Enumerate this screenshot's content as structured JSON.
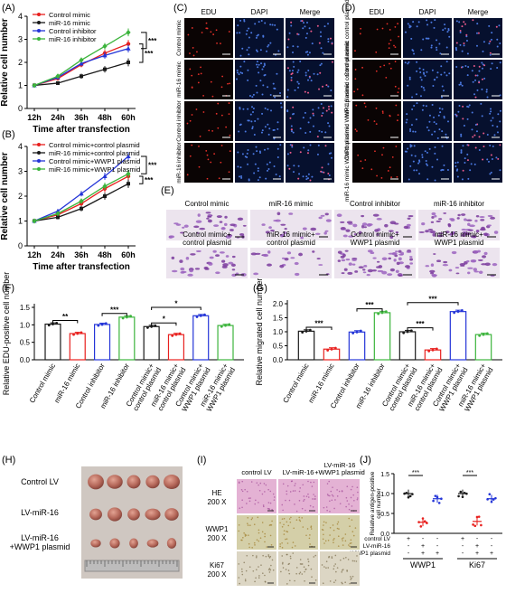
{
  "panels": {
    "A": "(A)",
    "B": "(B)",
    "C": "(C)",
    "D": "(D)",
    "E": "(E)",
    "F": "(F)",
    "G": "(G)",
    "H": "(H)",
    "I": "(I)",
    "J": "(J)"
  },
  "chart_data": [
    {
      "id": "A",
      "type": "line",
      "ylabel": "Relative cell number",
      "xlabel": "Time after transfection",
      "categories": [
        "12h",
        "24h",
        "36h",
        "48h",
        "60h"
      ],
      "yticks": [
        "0",
        "1",
        "2",
        "3",
        "4"
      ],
      "ylim": [
        0,
        4
      ],
      "significance": [
        "***",
        "***"
      ],
      "series": [
        {
          "name": "Control mimic",
          "color": "#e8201e",
          "values": [
            1.0,
            1.3,
            1.9,
            2.4,
            2.8
          ]
        },
        {
          "name": "miR-16 mimic",
          "color": "#1a1a1a",
          "values": [
            1.0,
            1.1,
            1.4,
            1.7,
            2.0
          ]
        },
        {
          "name": "Control inhibitor",
          "color": "#2435d8",
          "values": [
            1.0,
            1.35,
            1.95,
            2.3,
            2.6
          ]
        },
        {
          "name": "miR-16 inhibitor",
          "color": "#3cb43c",
          "values": [
            1.0,
            1.4,
            2.1,
            2.7,
            3.3
          ]
        }
      ]
    },
    {
      "id": "B",
      "type": "line",
      "ylabel": "Relative cell number",
      "xlabel": "Time after transfection",
      "categories": [
        "12h",
        "24h",
        "36h",
        "48h",
        "60h"
      ],
      "yticks": [
        "0",
        "1",
        "2",
        "3",
        "4"
      ],
      "ylim": [
        0,
        4
      ],
      "significance": [
        "***",
        "***"
      ],
      "series": [
        {
          "name": "Control mimic+control plasmid",
          "color": "#e8201e",
          "values": [
            1.0,
            1.25,
            1.7,
            2.3,
            2.8
          ]
        },
        {
          "name": "miR-16 mimic+control plasmid",
          "color": "#1a1a1a",
          "values": [
            1.0,
            1.15,
            1.5,
            2.0,
            2.5
          ]
        },
        {
          "name": "Control mimic+WWP1 plasmid",
          "color": "#2435d8",
          "values": [
            1.0,
            1.4,
            2.1,
            2.8,
            3.6
          ]
        },
        {
          "name": "miR-16 mimic+WWP1 plasmid",
          "color": "#3cb43c",
          "values": [
            1.0,
            1.3,
            1.8,
            2.4,
            2.9
          ]
        }
      ]
    },
    {
      "id": "F",
      "type": "bar",
      "ylabel": "Relative EDU-positive cell number",
      "yticks": [
        "0.0",
        "0.5",
        "1.0",
        "1.5"
      ],
      "ylim": [
        0,
        1.5
      ],
      "categories": [
        "Control mimic",
        "miR-16 mimic",
        "Control inhibitor",
        "miR-16 inhibitor",
        "Control mimic+ control plasmid",
        "miR-16 mimic+ control plasmid",
        "Control mimic+ WWP1 plasmid",
        "miR-16 mimic+ WWP1 plasmid"
      ],
      "colors": [
        "#1a1a1a",
        "#e8201e",
        "#2435d8",
        "#3cb43c",
        "#1a1a1a",
        "#e8201e",
        "#2435d8",
        "#3cb43c"
      ],
      "values": [
        1.02,
        0.75,
        1.01,
        1.22,
        0.95,
        0.72,
        1.26,
        0.98
      ],
      "significance": [
        {
          "label": "**",
          "from": 0,
          "to": 1
        },
        {
          "label": "***",
          "from": 2,
          "to": 3
        },
        {
          "label": "*",
          "from": 4,
          "to": 5
        },
        {
          "label": "*",
          "from": 4,
          "to": 6
        }
      ]
    },
    {
      "id": "G",
      "type": "bar",
      "ylabel": "Relative migrated cell number",
      "yticks": [
        "0.0",
        "0.5",
        "1.0",
        "1.5",
        "2.0"
      ],
      "ylim": [
        0,
        2.0
      ],
      "categories": [
        "Control mimic",
        "miR-16 mimic",
        "Control inhibitor",
        "miR-16 inhibitor",
        "Control mimic+ control plasmid",
        "miR-16 mimic+ control plasmid",
        "Control mimic+ WWP1 plasmid",
        "miR-16 mimic+ WWP1 plasmid"
      ],
      "colors": [
        "#1a1a1a",
        "#e8201e",
        "#2435d8",
        "#3cb43c",
        "#1a1a1a",
        "#e8201e",
        "#2435d8",
        "#3cb43c"
      ],
      "values": [
        1.02,
        0.38,
        0.99,
        1.68,
        1.0,
        0.35,
        1.72,
        0.9
      ],
      "significance": [
        {
          "label": "***",
          "from": 0,
          "to": 1
        },
        {
          "label": "***",
          "from": 2,
          "to": 3
        },
        {
          "label": "***",
          "from": 4,
          "to": 5
        },
        {
          "label": "***",
          "from": 4,
          "to": 6
        }
      ]
    },
    {
      "id": "J",
      "type": "scatter",
      "ylabel": "Relative antigen-positive cell number",
      "yticks": [
        "0.0",
        "0.5",
        "1.0",
        "1.5"
      ],
      "ylim": [
        0,
        1.5
      ],
      "groups": [
        "WWP1",
        "Ki67"
      ],
      "row_labels": [
        "control LV",
        "LV-miR-16",
        "WWP1 plasmid"
      ],
      "matrix": [
        [
          "+",
          "-",
          "-"
        ],
        [
          "-",
          "+",
          "+"
        ],
        [
          "-",
          "-",
          "+"
        ]
      ],
      "colors": [
        "#1a1a1a",
        "#e8201e",
        "#2435d8"
      ],
      "values": [
        [
          1.0,
          0.28,
          0.87
        ],
        [
          1.0,
          0.3,
          0.87
        ]
      ],
      "significance": [
        "***",
        "***"
      ]
    }
  ],
  "panelC": {
    "headers": [
      "EDU",
      "DAPI",
      "Merge"
    ],
    "rows": [
      "Control mimic",
      "miR-16 mimic",
      "Control inhibitor",
      "miR-16 inhibitor"
    ]
  },
  "panelD": {
    "headers": [
      "EDU",
      "DAPI",
      "Merge"
    ],
    "rows": [
      "Control mimic control plasmid",
      "miR-16 mimic control plasmid",
      "Control mimic WWP1 plasmid",
      "miR-16 mimic WWP1 plasmid"
    ]
  },
  "panelE": {
    "top": [
      "Control mimic",
      "miR-16 mimic",
      "Control inhibitor",
      "miR-16 inhibitor"
    ],
    "bottom": [
      [
        "Control mimic+",
        "control plasmid"
      ],
      [
        "miR-16 mimic+",
        "control plasmid"
      ],
      [
        "Control mimic+",
        "WWP1 plasmid"
      ],
      [
        "miR-16 mimic+",
        "WWP1 plasmid"
      ]
    ]
  },
  "panelH": {
    "rows": [
      [
        "Control LV"
      ],
      [
        "LV-miR-16"
      ],
      [
        "LV-miR-16",
        "+WWP1 plasmid"
      ]
    ]
  },
  "panelI": {
    "cols": [
      [
        "control LV"
      ],
      [
        "LV-miR-16"
      ],
      [
        "LV-miR-16",
        "+WWP1 plasmid"
      ]
    ],
    "rows": [
      [
        "HE",
        "200 X"
      ],
      [
        "WWP1",
        "200 X"
      ],
      [
        "Ki67",
        "200 X"
      ]
    ]
  }
}
